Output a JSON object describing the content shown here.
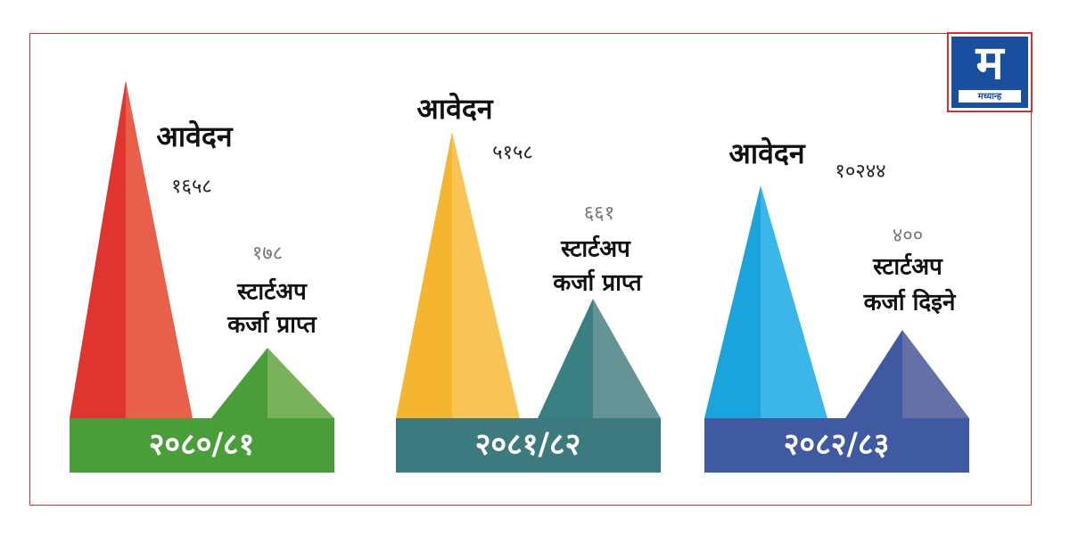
{
  "logo": {
    "letter": "म",
    "name": "मध्यान्ह"
  },
  "panels": [
    {
      "year": "२०८०/८१",
      "applications_label": "आवेदन",
      "applications": "१६५८",
      "startups": "१७८",
      "startups_label_1": "स्टार्टअप",
      "startups_label_2": "कर्जा प्राप्त"
    },
    {
      "year": "२०८१/८२",
      "applications_label": "आवेदन",
      "applications": "५१५८",
      "startups": "६६१",
      "startups_label_1": "स्टार्टअप",
      "startups_label_2": "कर्जा प्राप्त"
    },
    {
      "year": "२०८२/८३",
      "applications_label": "आवेदन",
      "applications": "१०२४४",
      "startups": "४००",
      "startups_label_1": "स्टार्टअप",
      "startups_label_2": "कर्जा दिइने"
    }
  ]
}
